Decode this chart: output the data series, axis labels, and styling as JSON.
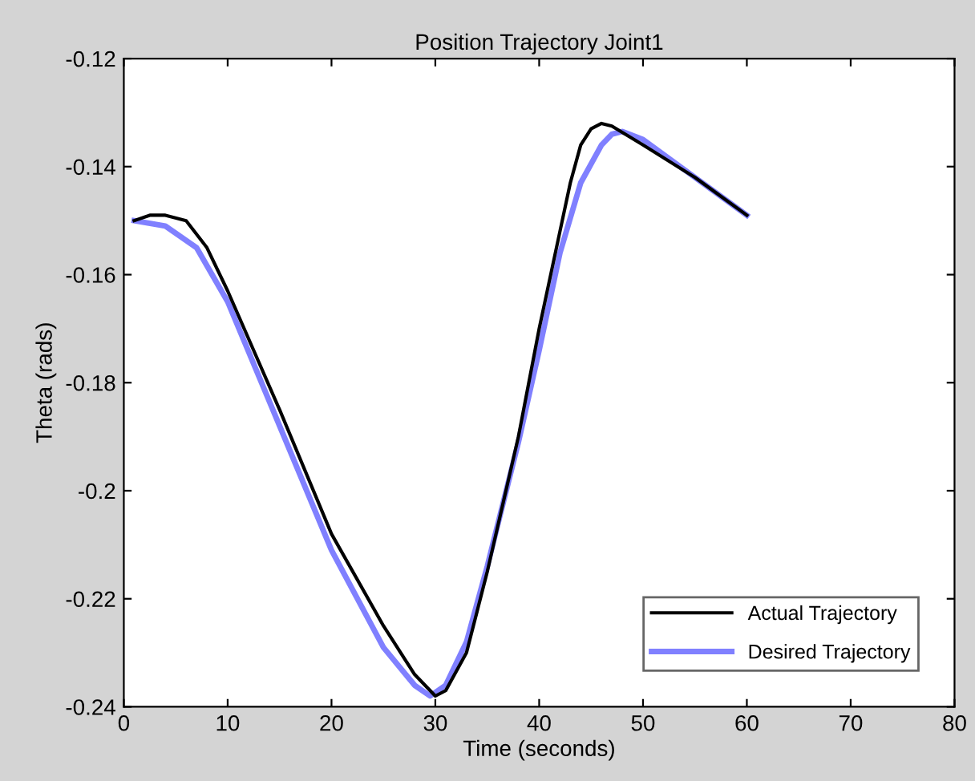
{
  "chart_data": {
    "type": "line",
    "title": "Position Trajectory Joint1",
    "xlabel": "Time (seconds)",
    "ylabel": "Theta (rads)",
    "xlim": [
      0,
      80
    ],
    "xticks": [
      0,
      10,
      20,
      30,
      40,
      50,
      60,
      70,
      80
    ],
    "ylim": [
      -0.24,
      -0.12
    ],
    "yticks": [
      -0.24,
      -0.22,
      -0.2,
      -0.18,
      -0.16,
      -0.14,
      -0.12
    ],
    "legend": "bottom right",
    "grid": false,
    "marker": "none",
    "line_style": "solid",
    "series": [
      {
        "name": "Actual Trajectory",
        "color": "#000000",
        "x": [
          1,
          2.5,
          4,
          6,
          8,
          10,
          15,
          20,
          25,
          28,
          30,
          31,
          33,
          35,
          38,
          40,
          42,
          43,
          44,
          45,
          46,
          47,
          50,
          55,
          60
        ],
        "values": [
          -0.15,
          -0.149,
          -0.149,
          -0.15,
          -0.155,
          -0.163,
          -0.185,
          -0.208,
          -0.225,
          -0.234,
          -0.238,
          -0.237,
          -0.23,
          -0.215,
          -0.19,
          -0.17,
          -0.152,
          -0.143,
          -0.136,
          -0.133,
          -0.132,
          -0.1325,
          -0.136,
          -0.142,
          -0.149
        ]
      },
      {
        "name": "Desired Trajectory",
        "color": "#8080ff",
        "x": [
          1,
          4,
          7,
          10,
          15,
          20,
          25,
          28,
          29.5,
          31,
          33,
          35,
          38,
          40,
          42,
          44,
          46,
          47,
          48,
          50,
          55,
          60
        ],
        "values": [
          -0.15,
          -0.151,
          -0.155,
          -0.165,
          -0.188,
          -0.211,
          -0.229,
          -0.236,
          -0.238,
          -0.236,
          -0.228,
          -0.214,
          -0.191,
          -0.174,
          -0.156,
          -0.143,
          -0.136,
          -0.134,
          -0.1335,
          -0.135,
          -0.142,
          -0.149
        ]
      }
    ]
  }
}
